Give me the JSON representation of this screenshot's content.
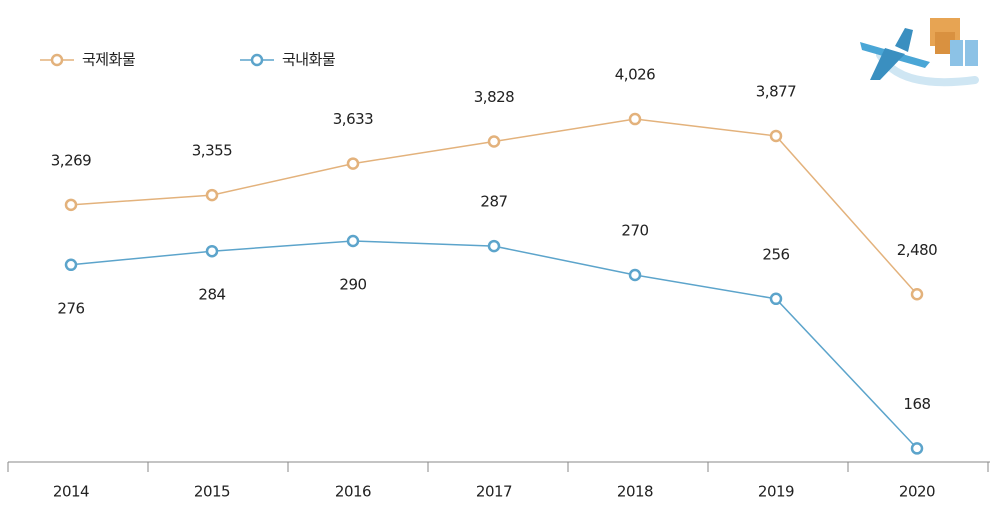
{
  "chart_data": {
    "type": "line",
    "categories": [
      "2014",
      "2015",
      "2016",
      "2017",
      "2018",
      "2019",
      "2020"
    ],
    "series": [
      {
        "name": "국제화물",
        "color": "#e3b27c",
        "values": [
          3269,
          3355,
          3633,
          3828,
          4026,
          3877,
          2480
        ],
        "value_labels": [
          "3,269",
          "3,355",
          "3,633",
          "3,828",
          "4,026",
          "3,877",
          "2,480"
        ]
      },
      {
        "name": "국내화물",
        "color": "#5ca4cb",
        "axis": "y2",
        "values": [
          276,
          284,
          290,
          287,
          270,
          256,
          168
        ]
      }
    ],
    "ylim": [
      1000,
      4900
    ],
    "y2lim": [
      160,
      420
    ],
    "legend": "top-left"
  }
}
